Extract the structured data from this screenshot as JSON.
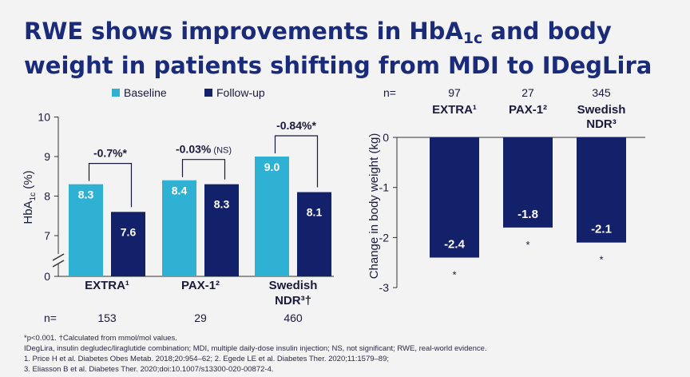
{
  "title": {
    "line1_pre": "RWE shows improvements in HbA",
    "line1_sub": "1c",
    "line1_post": " and body",
    "line2": "weight in patients shifting from MDI to IDegLira"
  },
  "colors": {
    "baseline": "#2fb1d4",
    "followup": "#13206a",
    "accent": "#1a2b7a",
    "background": "#f3f3f3"
  },
  "chart_data": [
    {
      "type": "bar",
      "categories": [
        "EXTRA¹",
        "PAX-1²",
        "Swedish NDR³†"
      ],
      "series": [
        {
          "name": "Baseline",
          "values": [
            8.3,
            8.4,
            9.0
          ]
        },
        {
          "name": "Follow-up",
          "values": [
            7.6,
            8.3,
            8.1
          ]
        }
      ],
      "value_labels": {
        "baseline": [
          "8.3",
          "8.4",
          "9.0"
        ],
        "followup": [
          "7.6",
          "8.3",
          "8.1"
        ]
      },
      "changes": [
        "-0.7%*",
        "-0.03%",
        "-0.84%*"
      ],
      "change_notes": [
        "",
        "(NS)",
        ""
      ],
      "n_label": "n=",
      "n": [
        "153",
        "29",
        "460"
      ],
      "ylabel_main": "HbA",
      "ylabel_sub": "1c",
      "ylabel_unit": " (%)",
      "yticks": [
        "10",
        "9",
        "8",
        "7",
        "0"
      ],
      "ylim": [
        6,
        10
      ],
      "axis_break": true,
      "legend_position": "top"
    },
    {
      "type": "bar",
      "categories": [
        "EXTRA¹",
        "PAX-1²",
        "Swedish NDR³"
      ],
      "values": [
        -2.4,
        -1.8,
        -2.1
      ],
      "value_labels": [
        "-2.4",
        "-1.8",
        "-2.1"
      ],
      "significance": [
        "*",
        "*",
        "*"
      ],
      "n_label": "n=",
      "n": [
        "97",
        "27",
        "345"
      ],
      "ylabel": "Change in body weight (kg)",
      "yticks": [
        "0",
        "-1",
        "-2",
        "-3"
      ],
      "ylim": [
        -3,
        0
      ]
    }
  ],
  "footnotes": [
    "*p<0.001. †Calculated from mmol/mol values.",
    "IDegLira, insulin degludec/liraglutide combination; MDI, multiple daily-dose insulin injection; NS, not significant; RWE, real-world evidence.",
    "1. Price H et al. Diabetes Obes Metab. 2018;20:954–62; 2. Egede LE et al. Diabetes Ther. 2020;11:1579–89;",
    "3. Eliasson B et al. Diabetes Ther. 2020;doi:10.1007/s13300-020-00872-4."
  ]
}
